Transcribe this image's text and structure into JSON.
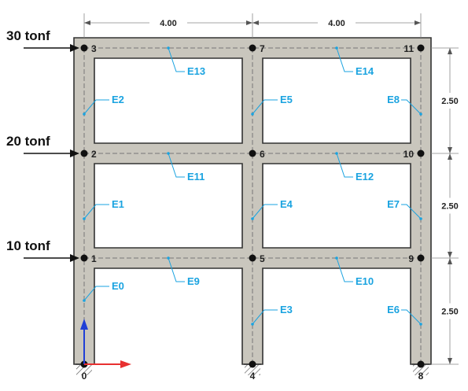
{
  "colors": {
    "member_fill": "#c9c6bd",
    "member_stroke": "#333333",
    "element_label": "#1aa3e0",
    "node": "#111111",
    "centerline": "#777777",
    "axis_y": "#1f3fd6",
    "axis_x": "#e83030"
  },
  "dimensions": {
    "bays": [
      "4.00",
      "4.00"
    ],
    "stories": [
      "2.50",
      "2.50",
      "2.50"
    ]
  },
  "loads": [
    {
      "node": "1",
      "label": "10 tonf"
    },
    {
      "node": "2",
      "label": "20 tonf"
    },
    {
      "node": "3",
      "label": "30 tonf"
    }
  ],
  "nodes": [
    "0",
    "1",
    "2",
    "3",
    "4",
    "5",
    "6",
    "7",
    "8",
    "9",
    "10",
    "11"
  ],
  "elements": [
    "E0",
    "E1",
    "E2",
    "E3",
    "E4",
    "E5",
    "E6",
    "E7",
    "E8",
    "E9",
    "E10",
    "E11",
    "E12",
    "E13",
    "E14"
  ],
  "supports": [
    "hatched-fixed-support-icon",
    "hatched-fixed-support-icon",
    "hatched-fixed-support-icon"
  ],
  "axes_icon": "xy-axes-icon"
}
